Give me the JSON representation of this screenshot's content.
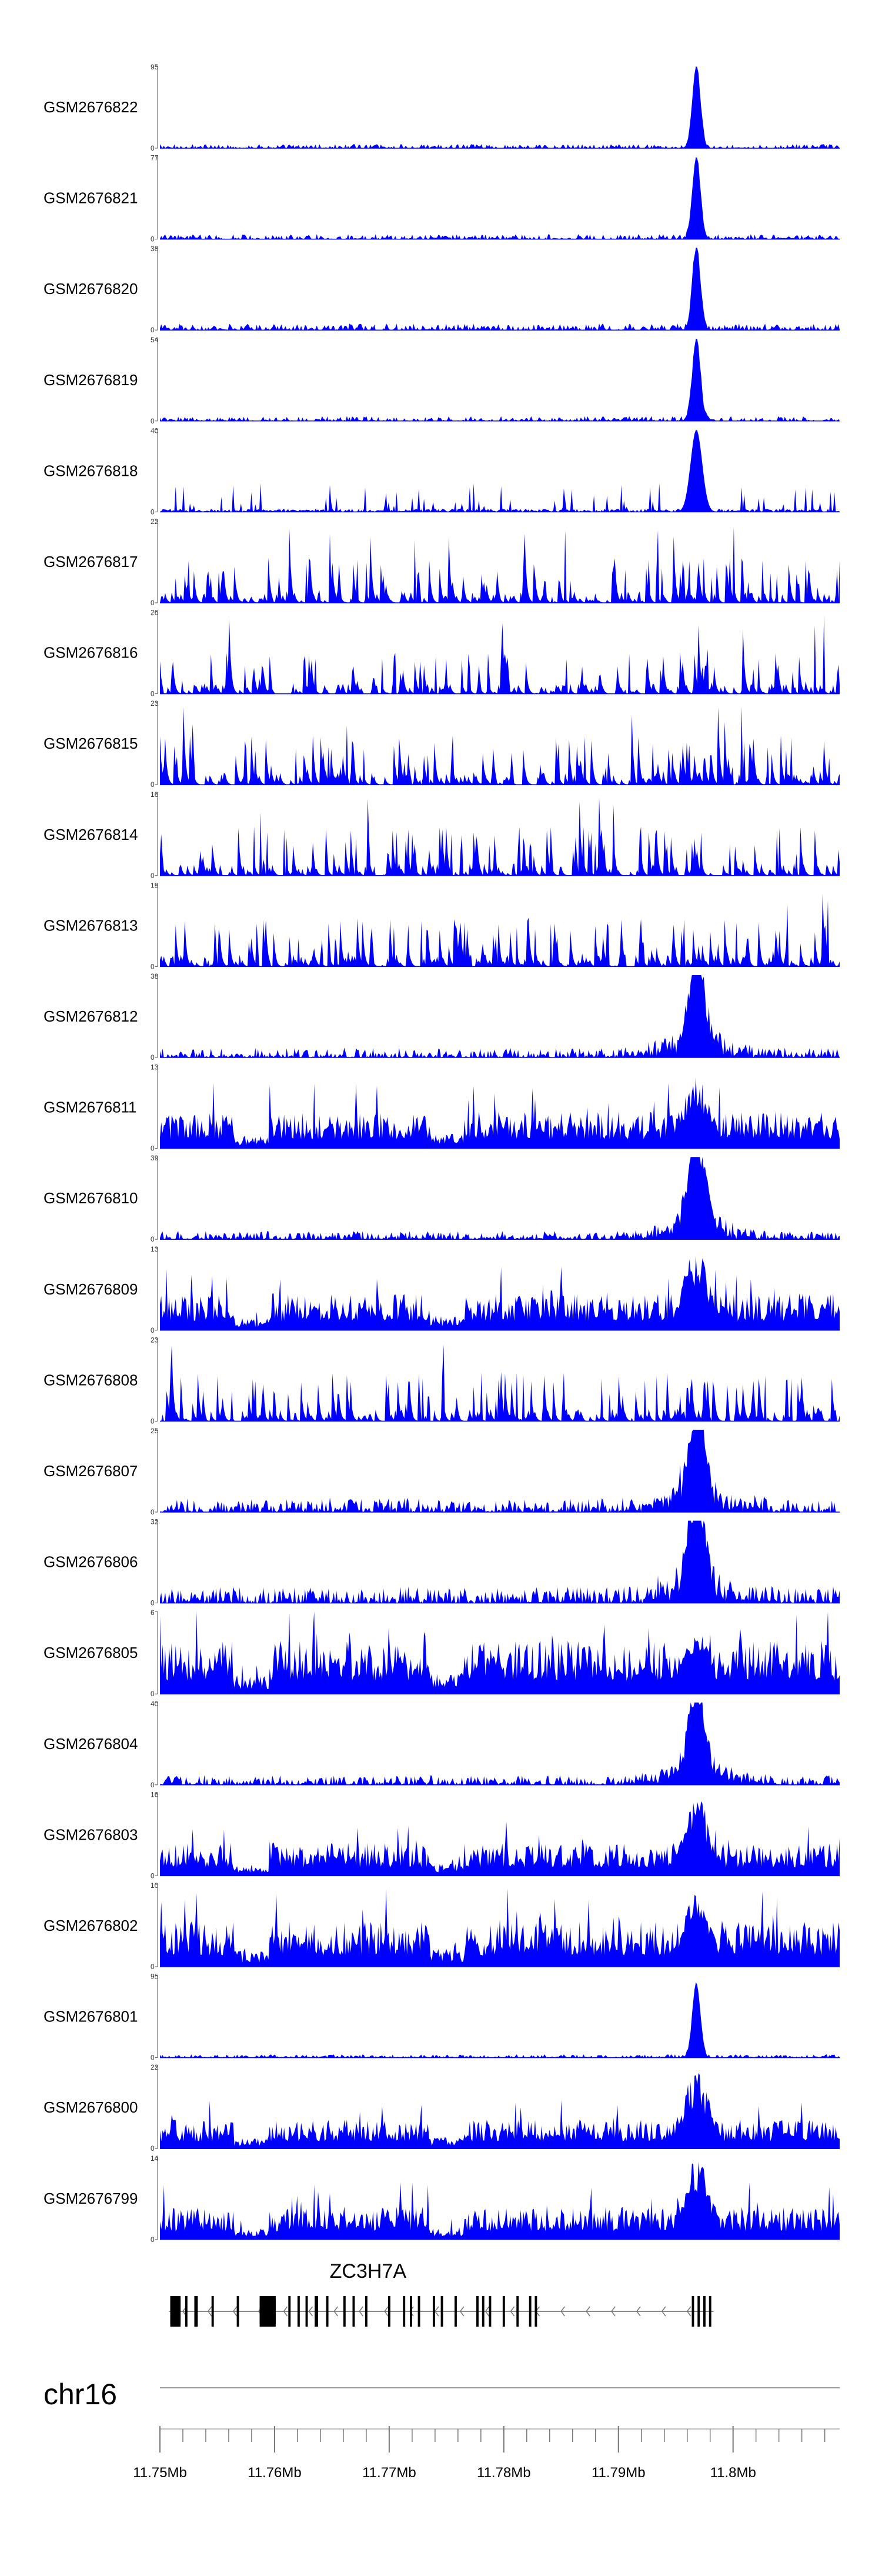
{
  "chart_data": {
    "type": "area",
    "title": "",
    "chromosome": "chr16",
    "xlim": [
      11.75,
      11.8093
    ],
    "x_unit": "Mb",
    "x_ticks": [
      11.75,
      11.76,
      11.77,
      11.78,
      11.79,
      11.8
    ],
    "x_tick_labels": [
      "11.75Mb",
      "11.76Mb",
      "11.77Mb",
      "11.78Mb",
      "11.79Mb",
      "11.8Mb"
    ],
    "series_color": "#0000ff",
    "tracks": [
      {
        "name": "GSM2676822",
        "ymax": 95,
        "ymin": 0,
        "profile": "peak",
        "noise": 0.05,
        "peak": 1.0
      },
      {
        "name": "GSM2676821",
        "ymax": 77,
        "ymin": 0,
        "profile": "peak",
        "noise": 0.06,
        "peak": 1.0
      },
      {
        "name": "GSM2676820",
        "ymax": 38,
        "ymin": 0,
        "profile": "peak",
        "noise": 0.08,
        "peak": 1.0
      },
      {
        "name": "GSM2676819",
        "ymax": 54,
        "ymin": 0,
        "profile": "peak",
        "noise": 0.06,
        "peak": 1.0
      },
      {
        "name": "GSM2676818",
        "ymax": 40,
        "ymin": 0,
        "profile": "spiky_peak",
        "noise": 0.25,
        "peak": 1.0
      },
      {
        "name": "GSM2676817",
        "ymax": 22,
        "ymin": 0,
        "profile": "spiky",
        "noise": 0.55,
        "peak": 0.4
      },
      {
        "name": "GSM2676816",
        "ymax": 26,
        "ymin": 0,
        "profile": "spiky",
        "noise": 0.5,
        "peak": 0.55
      },
      {
        "name": "GSM2676815",
        "ymax": 23,
        "ymin": 0,
        "profile": "spiky",
        "noise": 0.6,
        "peak": 0.5
      },
      {
        "name": "GSM2676814",
        "ymax": 16,
        "ymin": 0,
        "profile": "spiky",
        "noise": 0.6,
        "peak": 0.5
      },
      {
        "name": "GSM2676813",
        "ymax": 19,
        "ymin": 0,
        "profile": "spiky",
        "noise": 0.6,
        "peak": 0.5
      },
      {
        "name": "GSM2676812",
        "ymax": 38,
        "ymin": 0,
        "profile": "broad_peak",
        "noise": 0.12,
        "peak": 1.0
      },
      {
        "name": "GSM2676811",
        "ymax": 13,
        "ymin": 0,
        "profile": "dense",
        "noise": 0.45,
        "peak": 0.9
      },
      {
        "name": "GSM2676810",
        "ymax": 39,
        "ymin": 0,
        "profile": "broad_peak",
        "noise": 0.1,
        "peak": 1.0
      },
      {
        "name": "GSM2676809",
        "ymax": 13,
        "ymin": 0,
        "profile": "dense",
        "noise": 0.45,
        "peak": 1.0
      },
      {
        "name": "GSM2676808",
        "ymax": 23,
        "ymin": 0,
        "profile": "spiky",
        "noise": 0.6,
        "peak": 0.5
      },
      {
        "name": "GSM2676807",
        "ymax": 25,
        "ymin": 0,
        "profile": "broad_peak",
        "noise": 0.18,
        "peak": 1.0
      },
      {
        "name": "GSM2676806",
        "ymax": 32,
        "ymin": 0,
        "profile": "broad_peak",
        "noise": 0.2,
        "peak": 1.0
      },
      {
        "name": "GSM2676805",
        "ymax": 6,
        "ymin": 0,
        "profile": "dense",
        "noise": 0.65,
        "peak": 0.8
      },
      {
        "name": "GSM2676804",
        "ymax": 40,
        "ymin": 0,
        "profile": "broad_peak",
        "noise": 0.12,
        "peak": 1.0
      },
      {
        "name": "GSM2676803",
        "ymax": 16,
        "ymin": 0,
        "profile": "dense",
        "noise": 0.4,
        "peak": 1.0
      },
      {
        "name": "GSM2676802",
        "ymax": 10,
        "ymin": 0,
        "profile": "dense",
        "noise": 0.55,
        "peak": 0.9
      },
      {
        "name": "GSM2676801",
        "ymax": 95,
        "ymin": 0,
        "profile": "peak",
        "noise": 0.04,
        "peak": 0.9
      },
      {
        "name": "GSM2676800",
        "ymax": 22,
        "ymin": 0,
        "profile": "dense",
        "noise": 0.35,
        "peak": 1.0
      },
      {
        "name": "GSM2676799",
        "ymax": 14,
        "ymin": 0,
        "profile": "dense",
        "noise": 0.4,
        "peak": 1.0
      }
    ],
    "gene": {
      "name": "ZC3H7A",
      "start_mb": 11.7508,
      "end_mb": 11.7983,
      "strand": "-",
      "exons_mb": [
        [
          11.7509,
          11.7518
        ],
        [
          11.7522,
          11.7524
        ],
        [
          11.753,
          11.7533
        ],
        [
          11.7545,
          11.7547
        ],
        [
          11.7567,
          11.7569
        ],
        [
          11.7587,
          11.7601
        ],
        [
          11.7612,
          11.7614
        ],
        [
          11.762,
          11.7622
        ],
        [
          11.7627,
          11.7629
        ],
        [
          11.7635,
          11.7638
        ],
        [
          11.7645,
          11.7647
        ],
        [
          11.766,
          11.7662
        ],
        [
          11.7668,
          11.767
        ],
        [
          11.7679,
          11.7681
        ],
        [
          11.7699,
          11.7701
        ],
        [
          11.7712,
          11.7714
        ],
        [
          11.7718,
          11.772
        ],
        [
          11.7725,
          11.7727
        ],
        [
          11.7738,
          11.774
        ],
        [
          11.7745,
          11.7747
        ],
        [
          11.7757,
          11.7759
        ],
        [
          11.7776,
          11.7778
        ],
        [
          11.7781,
          11.7783
        ],
        [
          11.7787,
          11.7789
        ],
        [
          11.7799,
          11.7801
        ],
        [
          11.7811,
          11.7813
        ],
        [
          11.7822,
          11.7824
        ],
        [
          11.7827,
          11.7829
        ],
        [
          11.7964,
          11.7966
        ],
        [
          11.7969,
          11.7971
        ],
        [
          11.7974,
          11.7976
        ],
        [
          11.7979,
          11.7981
        ]
      ],
      "thick_exons_mb": [
        [
          11.7509,
          11.7518
        ],
        [
          11.7587,
          11.7601
        ]
      ]
    }
  }
}
